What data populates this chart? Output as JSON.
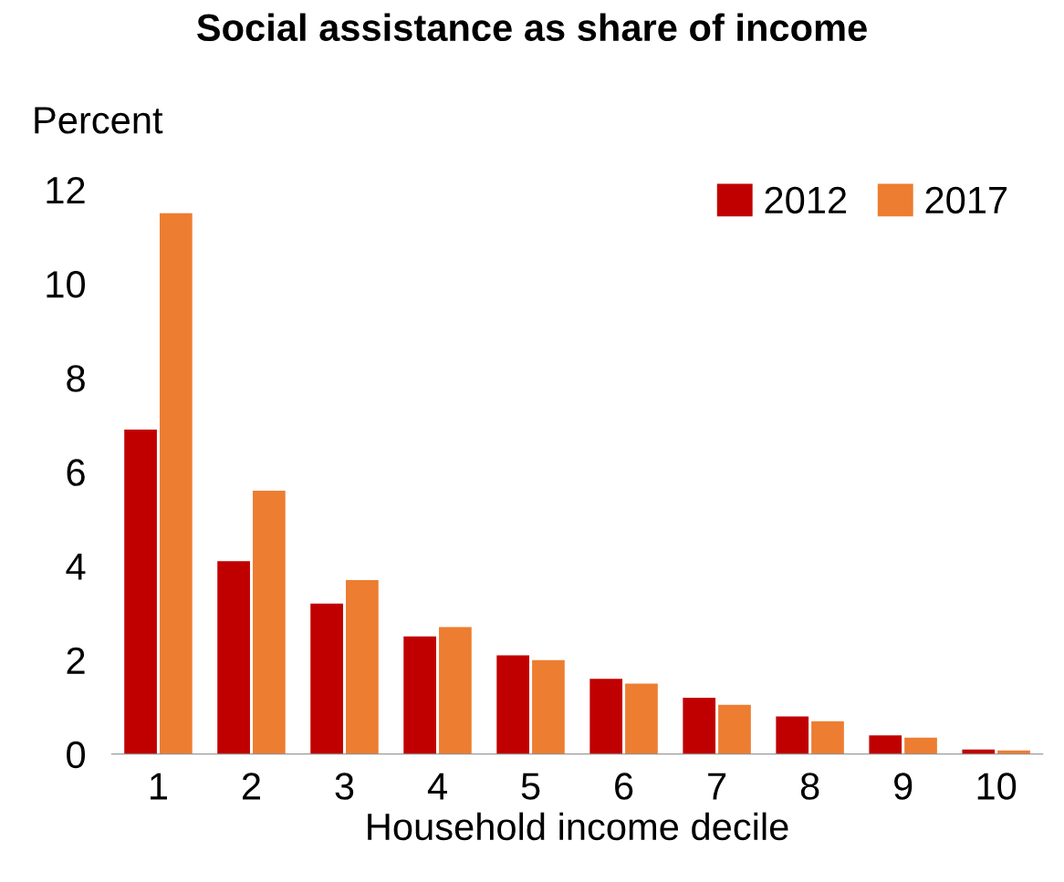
{
  "chart_data": {
    "type": "bar",
    "title": "Social assistance as share of income",
    "ylabel": "Percent",
    "xlabel": "Household income decile",
    "categories": [
      "1",
      "2",
      "3",
      "4",
      "5",
      "6",
      "7",
      "8",
      "9",
      "10"
    ],
    "series": [
      {
        "name": "2012",
        "color": "#c00000",
        "values": [
          6.9,
          4.1,
          3.2,
          2.5,
          2.1,
          1.6,
          1.2,
          0.8,
          0.4,
          0.1
        ]
      },
      {
        "name": "2017",
        "color": "#ed7d31",
        "values": [
          11.5,
          5.6,
          3.7,
          2.7,
          2.0,
          1.5,
          1.05,
          0.7,
          0.35,
          0.08
        ]
      }
    ],
    "ylim": [
      0,
      12
    ],
    "yticks": [
      0,
      2,
      4,
      6,
      8,
      10,
      12
    ],
    "grid": false,
    "legend": "top right"
  }
}
